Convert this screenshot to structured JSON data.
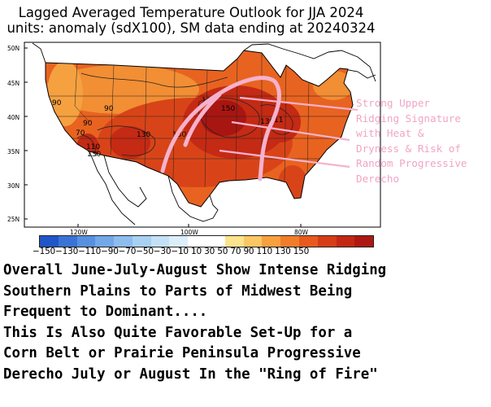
{
  "title": {
    "line1": "Lagged Averaged Temperature Outlook for JJA 2024",
    "line2": "units: anomaly (sdX100), SM data ending at 20240324"
  },
  "map": {
    "lat_labels": [
      "50N",
      "45N",
      "40N",
      "35N",
      "30N",
      "25N"
    ],
    "lon_labels": [
      "120W",
      "100W",
      "80W"
    ],
    "contour_labels": [
      "90",
      "90",
      "90",
      "70",
      "110",
      "130",
      "130",
      "130",
      "150",
      "130",
      "130",
      "11",
      "110"
    ]
  },
  "legend": {
    "labels": "−150−130−110−90−70−50−30−10 10 30 50 70 90 110 130 150",
    "colors": [
      "#2155c8",
      "#3a73d6",
      "#5790e0",
      "#72a8e8",
      "#8dbdee",
      "#a8d0f2",
      "#c4e0f6",
      "#dbeefa",
      "#ffffff",
      "#ffffff",
      "#fce38c",
      "#fbc664",
      "#f7a03e",
      "#f07d2a",
      "#e65a1e",
      "#d63c16",
      "#c42614",
      "#ae1812"
    ]
  },
  "annotation": {
    "lines": [
      "Strong Upper",
      "Ridging Signature",
      "with Heat &",
      "Dryness & Risk of",
      "Random Progressive",
      "Derecho"
    ]
  },
  "caption": {
    "lines": [
      "Overall June-July-August Show Intense Ridging",
      "Southern Plains to Parts of Midwest Being",
      "Frequent to Dominant....",
      "This Is Also Quite Favorable Set-Up for a",
      "Corn Belt or Prairie Peninsula Progressive",
      "Derecho July or August In the \"Ring of Fire\""
    ]
  },
  "colors": {
    "ring": "#f6b2cd",
    "annotation": "#f0a5c4"
  }
}
